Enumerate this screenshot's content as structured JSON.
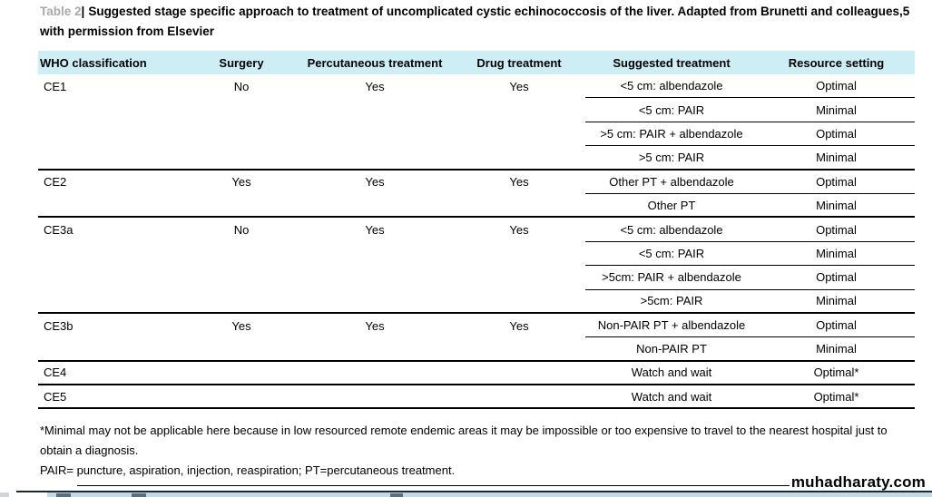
{
  "page": {
    "title_label": "Table 2",
    "title_separator": "|",
    "title_text": "Suggested stage specific approach to treatment of uncomplicated cystic echinococcosis of the liver. Adapted from Brunetti and colleagues,5 with permission from Elsevier"
  },
  "table": {
    "columns": [
      "WHO classification",
      "Surgery",
      "Percutaneous treatment",
      "Drug treatment",
      "Suggested treatment",
      "Resource setting"
    ],
    "groups": [
      {
        "who": "CE1",
        "surgery": "No",
        "percutaneous": "Yes",
        "drug": "Yes",
        "options": [
          {
            "suggested": "<5 cm: albendazole",
            "resource": "Optimal"
          },
          {
            "suggested": "<5 cm: PAIR",
            "resource": "Minimal"
          },
          {
            "suggested": ">5 cm: PAIR + albendazole",
            "resource": "Optimal"
          },
          {
            "suggested": ">5 cm: PAIR",
            "resource": "Minimal"
          }
        ]
      },
      {
        "who": "CE2",
        "surgery": "Yes",
        "percutaneous": "Yes",
        "drug": "Yes",
        "options": [
          {
            "suggested": "Other PT + albendazole",
            "resource": "Optimal"
          },
          {
            "suggested": "Other PT",
            "resource": "Minimal"
          }
        ]
      },
      {
        "who": "CE3a",
        "surgery": "No",
        "percutaneous": "Yes",
        "drug": "Yes",
        "options": [
          {
            "suggested": "<5 cm: albendazole",
            "resource": "Optimal"
          },
          {
            "suggested": "<5 cm: PAIR",
            "resource": "Minimal"
          },
          {
            "suggested": ">5cm: PAIR + albendazole",
            "resource": "Optimal"
          },
          {
            "suggested": ">5cm: PAIR",
            "resource": "Minimal"
          }
        ]
      },
      {
        "who": "CE3b",
        "surgery": "Yes",
        "percutaneous": "Yes",
        "drug": "Yes",
        "options": [
          {
            "suggested": "Non-PAIR PT + albendazole",
            "resource": "Optimal"
          },
          {
            "suggested": "Non-PAIR PT",
            "resource": "Minimal"
          }
        ]
      },
      {
        "who": "CE4",
        "surgery": "",
        "percutaneous": "",
        "drug": "",
        "options": [
          {
            "suggested": "Watch and wait",
            "resource": "Optimal*"
          }
        ]
      },
      {
        "who": "CE5",
        "surgery": "",
        "percutaneous": "",
        "drug": "",
        "options": [
          {
            "suggested": "Watch and wait",
            "resource": "Optimal*"
          }
        ]
      }
    ]
  },
  "footnotes": {
    "asterisk_note": "*Minimal may not be applicable here because in low resourced remote endemic areas it may be impossible or too expensive to travel to the nearest hospital just to obtain a diagnosis.",
    "abbreviations": "PAIR= puncture, aspiration, injection, reaspiration; PT=percutaneous treatment."
  },
  "watermark": {
    "text": "muhadharaty.com"
  },
  "colors": {
    "header_bg": "#cdeef5",
    "title_label_gray": "#a8a8a8",
    "rule_black": "#000000",
    "next_page_line": "#1b2833",
    "next_page_strip": "#c3d9e4"
  }
}
